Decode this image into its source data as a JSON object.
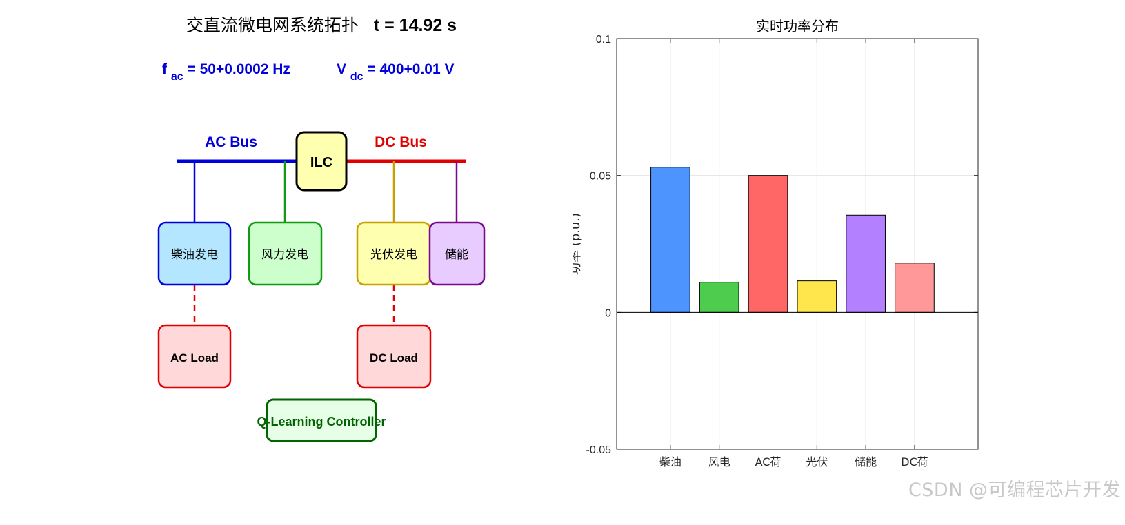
{
  "topology": {
    "title_prefix": "交直流微电网系统拓扑",
    "title_time": "t = 14.92 s",
    "freq_symbol": "f",
    "freq_sub": "ac",
    "freq_value": " = 50+0.0002 Hz",
    "volt_symbol": "V",
    "volt_sub": "dc",
    "volt_value": " = 400+0.01 V",
    "ac_bus_label": "AC Bus",
    "dc_bus_label": "DC Bus",
    "ilc_label": "ILC",
    "diesel_label": "柴油发电",
    "wind_label": "风力发电",
    "pv_label": "光伏发电",
    "storage_label": "储能",
    "ac_load_label": "AC Load",
    "dc_load_label": "DC Load",
    "controller_label": "Q-Learning Controller",
    "colors": {
      "ac": "#0000dd",
      "dc": "#e00000",
      "wind": "#129a12",
      "pv": "#c8a000",
      "storage": "#7a0a8a",
      "controller": "#006400"
    }
  },
  "chart_data": {
    "type": "bar",
    "title": "实时功率分布",
    "ylabel": "功率 (p.u.)",
    "xlabel": "",
    "categories": [
      "柴油",
      "风电",
      "AC荷",
      "光伏",
      "储能",
      "DC荷"
    ],
    "values": [
      0.053,
      0.011,
      0.05,
      0.0115,
      0.0355,
      0.018
    ],
    "colors": [
      "#4d94ff",
      "#4dcc4d",
      "#ff6666",
      "#ffe64d",
      "#b380ff",
      "#ff9999"
    ],
    "ylim": [
      -0.05,
      0.1
    ],
    "yticks": [
      -0.05,
      0,
      0.05,
      0.1
    ],
    "ytick_labels": [
      "-0.05",
      "0",
      "0.05",
      "0.1"
    ],
    "grid": true,
    "legend": "none"
  },
  "watermark": "CSDN @可编程芯片开发"
}
